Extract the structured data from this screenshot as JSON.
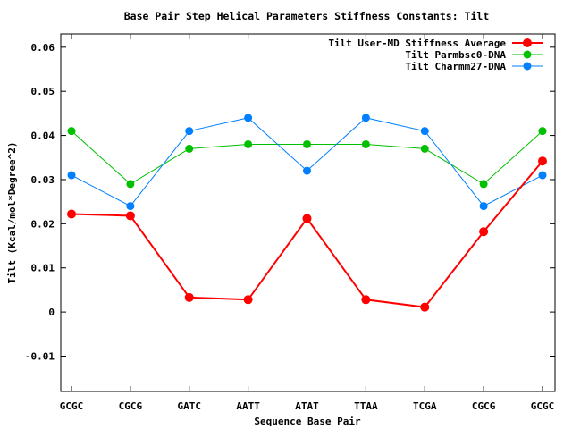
{
  "chart_data": {
    "type": "line",
    "title": "Base Pair Step Helical Parameters Stiffness Constants: Tilt",
    "xlabel": "Sequence Base Pair",
    "ylabel": "Tilt (Kcal/mol*Degree^2)",
    "categories": [
      "GCGC",
      "CGCG",
      "GATC",
      "AATT",
      "ATAT",
      "TTAA",
      "TCGA",
      "CGCG",
      "GCGC"
    ],
    "ylim": [
      -0.018,
      0.063
    ],
    "yticks": [
      -0.01,
      0,
      0.01,
      0.02,
      0.03,
      0.04,
      0.05,
      0.06
    ],
    "ytick_labels": [
      "-0.01",
      "0",
      "0.01",
      "0.02",
      "0.03",
      "0.04",
      "0.05",
      "0.06"
    ],
    "legend_position": "top-right",
    "grid": false,
    "series": [
      {
        "name": "Tilt User-MD Stiffness Average",
        "color": "#ff0000",
        "values": [
          0.0222,
          0.0218,
          0.0033,
          0.0028,
          0.0212,
          0.0028,
          0.0011,
          0.0182,
          0.0342
        ]
      },
      {
        "name": "Tilt Parmbsc0-DNA",
        "color": "#00c000",
        "values": [
          0.041,
          0.029,
          0.037,
          0.038,
          0.038,
          0.038,
          0.037,
          0.029,
          0.041
        ]
      },
      {
        "name": "Tilt Charmm27-DNA",
        "color": "#0080ff",
        "values": [
          0.031,
          0.024,
          0.041,
          0.044,
          0.032,
          0.044,
          0.041,
          0.024,
          0.031
        ]
      }
    ]
  }
}
